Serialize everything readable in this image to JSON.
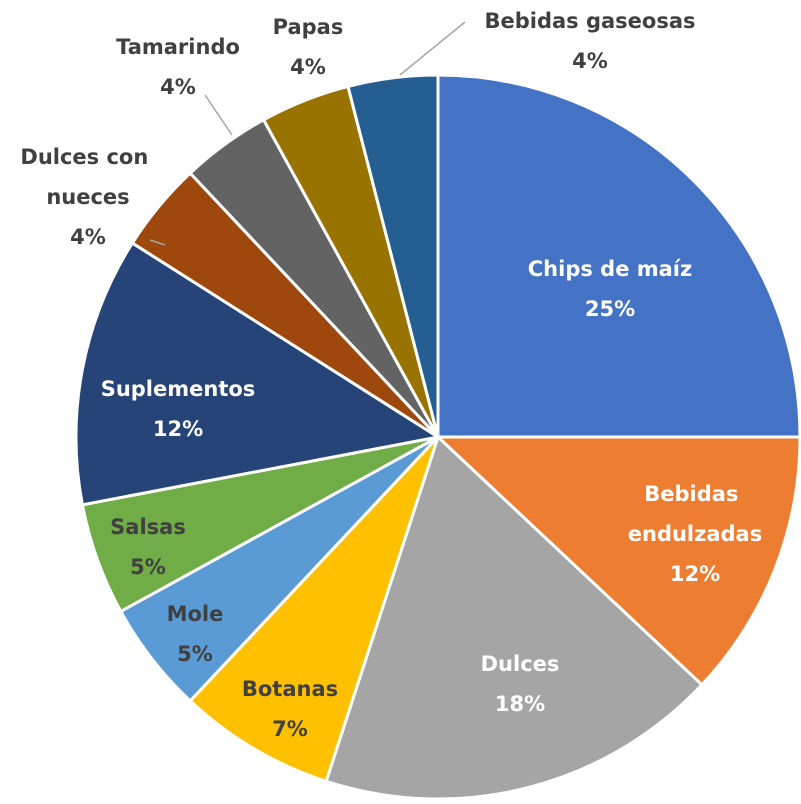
{
  "chart_data": {
    "type": "pie",
    "categories": [
      "Chips de maíz",
      "Bebidas endulzadas",
      "Dulces",
      "Botanas",
      "Mole",
      "Salsas",
      "Suplementos",
      "Dulces con nueces",
      "Tamarindo",
      "Papas",
      "Bebidas gaseosas"
    ],
    "values": [
      25,
      12,
      18,
      7,
      5,
      5,
      12,
      4,
      4,
      4,
      4
    ],
    "value_labels": [
      "25%",
      "12%",
      "18%",
      "7%",
      "5%",
      "5%",
      "12%",
      "4%",
      "4%",
      "4%",
      "4%"
    ],
    "colors": [
      "#4472c4",
      "#ed7d31",
      "#a5a5a5",
      "#ffc000",
      "#5b9bd5",
      "#70ad47",
      "#264478",
      "#9e480e",
      "#636363",
      "#997300",
      "#255e91"
    ]
  }
}
